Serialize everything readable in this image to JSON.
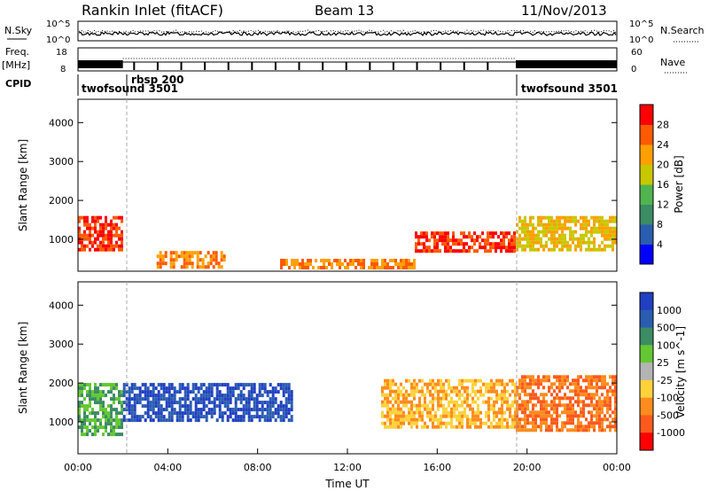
{
  "header": {
    "title": "Rankin Inlet (fitACF)",
    "beam": "Beam 13",
    "date": "11/Nov/2013"
  },
  "top_panels": {
    "nsky_label": "N.Sky",
    "nsearch_label": "N.Search",
    "nsky_ticks": [
      "10^5",
      "10^0"
    ],
    "nsearch_ticks": [
      "10^5",
      "10^0"
    ],
    "freq_label": "Freq.",
    "freq_unit": "[MHz]",
    "freq_ticks": [
      "18",
      "8"
    ],
    "nave_label": "Nave",
    "nave_ticks": [
      "60",
      "0"
    ],
    "cpid_label": "CPID",
    "cpid_segments": [
      "twofsound 3501",
      "rbsp 200",
      "twofsound 3501"
    ]
  },
  "colors": {
    "power_scale": [
      "#0000ff",
      "#2a5db0",
      "#3c8c64",
      "#50b450",
      "#c8c800",
      "#ffa000",
      "#ff5a00",
      "#ff0000"
    ],
    "velocity_scale": [
      "#2040c0",
      "#2a5db0",
      "#3c8c64",
      "#64c832",
      "#b4b4b4",
      "#ffd23c",
      "#ff8c1e",
      "#ff5a1e",
      "#ff0000"
    ]
  },
  "chart_data": [
    {
      "type": "heatmap",
      "title": "Power",
      "xlabel": "",
      "ylabel": "Slant Range [km]",
      "xlim": [
        "00:00",
        "00:00"
      ],
      "ylim": [
        180,
        4600
      ],
      "y_ticks": [
        "1000",
        "2000",
        "3000",
        "4000"
      ],
      "colorbar": {
        "label": "Power [dB]",
        "ticks": [
          "4",
          "8",
          "12",
          "16",
          "20",
          "24",
          "28"
        ],
        "range": [
          0,
          32
        ]
      },
      "dominant_features": [
        {
          "x_range": [
            "00:00",
            "02:00"
          ],
          "y_range": [
            700,
            1600
          ],
          "value": 28
        },
        {
          "x_range": [
            "03:30",
            "06:30"
          ],
          "y_range": [
            300,
            700
          ],
          "value": 24
        },
        {
          "x_range": [
            "09:00",
            "15:00"
          ],
          "y_range": [
            250,
            500
          ],
          "value": 24
        },
        {
          "x_range": [
            "15:00",
            "19:30"
          ],
          "y_range": [
            700,
            1200
          ],
          "value": 28
        },
        {
          "x_range": [
            "19:30",
            "24:00"
          ],
          "y_range": [
            700,
            1600
          ],
          "value": 20
        }
      ]
    },
    {
      "type": "heatmap",
      "title": "Velocity",
      "xlabel": "Time UT",
      "ylabel": "Slant Range [km]",
      "x_ticks": [
        "00:00",
        "04:00",
        "08:00",
        "12:00",
        "16:00",
        "20:00",
        "00:00"
      ],
      "ylim": [
        180,
        4600
      ],
      "y_ticks": [
        "1000",
        "2000",
        "3000",
        "4000"
      ],
      "colorbar": {
        "label": "Velocity [m s^-1]",
        "ticks": [
          "1000",
          "500",
          "100",
          "25",
          "-25",
          "-100",
          "-500",
          "-1000"
        ]
      },
      "dominant_features": [
        {
          "x_range": [
            "00:00",
            "02:00"
          ],
          "y_range": [
            700,
            2000
          ],
          "value": 100
        },
        {
          "x_range": [
            "02:00",
            "09:30"
          ],
          "y_range": [
            1000,
            2000
          ],
          "value": 1000
        },
        {
          "x_range": [
            "13:30",
            "19:30"
          ],
          "y_range": [
            900,
            2100
          ],
          "value": -100
        },
        {
          "x_range": [
            "19:30",
            "24:00"
          ],
          "y_range": [
            800,
            2200
          ],
          "value": -500
        }
      ]
    }
  ]
}
